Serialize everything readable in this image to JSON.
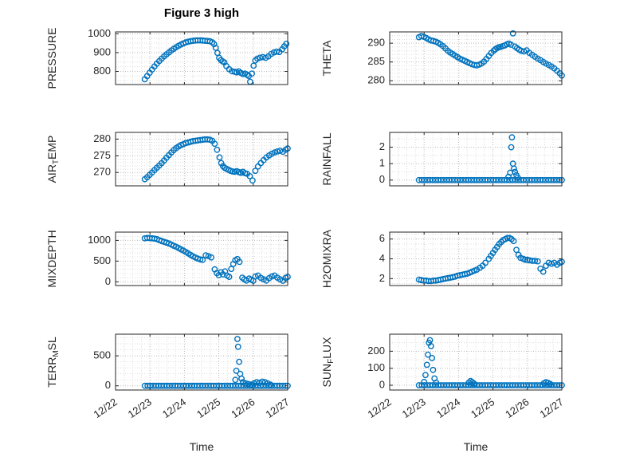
{
  "title": "Figure 3 high",
  "xlabel": "Time",
  "x_tick_labels": [
    "12/22",
    "12/23",
    "12/24",
    "12/25",
    "12/26",
    "12/27"
  ],
  "xticks": [
    0,
    1,
    2,
    3,
    4,
    5
  ],
  "xlim": [
    0,
    5
  ],
  "xminor": 0.25,
  "colors": {
    "marker": "#0072BD",
    "axis": "#262626",
    "grid_major": "#b9b9b9",
    "grid_minor": "#dcdcdc"
  },
  "chart_data": [
    {
      "id": "pressure",
      "type": "scatter",
      "ylabel_text": "PRESSURE",
      "ylabel_parts": [
        {
          "text": "PRESSURE",
          "sub": false
        }
      ],
      "yticks": [
        800,
        900,
        1000
      ],
      "ylim": [
        730,
        1010
      ],
      "yminor": 25,
      "x": [
        0.85,
        0.92,
        0.99,
        1.06,
        1.13,
        1.2,
        1.27,
        1.34,
        1.41,
        1.48,
        1.55,
        1.62,
        1.69,
        1.76,
        1.83,
        1.9,
        1.97,
        2.04,
        2.11,
        2.18,
        2.25,
        2.32,
        2.39,
        2.46,
        2.53,
        2.6,
        2.67,
        2.74,
        2.81,
        2.86,
        2.91,
        2.96,
        3.01,
        3.06,
        3.11,
        3.16,
        3.22,
        3.3,
        3.38,
        3.46,
        3.52,
        3.58,
        3.64,
        3.7,
        3.76,
        3.82,
        3.87,
        3.91,
        3.96,
        4.01,
        4.06,
        4.12,
        4.2,
        4.28,
        4.36,
        4.44,
        4.52,
        4.6,
        4.68,
        4.76,
        4.84,
        4.9,
        4.96
      ],
      "y": [
        758,
        775,
        793,
        810,
        826,
        841,
        855,
        868,
        880,
        891,
        901,
        911,
        920,
        928,
        936,
        943,
        949,
        954,
        958,
        961,
        963,
        964,
        965,
        965,
        964,
        963,
        962,
        960,
        955,
        945,
        925,
        898,
        872,
        860,
        853,
        848,
        828,
        812,
        801,
        798,
        795,
        800,
        792,
        786,
        788,
        782,
        776,
        745,
        788,
        830,
        858,
        868,
        873,
        876,
        872,
        880,
        893,
        901,
        905,
        903,
        918,
        933,
        947
      ]
    },
    {
      "id": "theta",
      "type": "scatter",
      "ylabel_text": "THETA",
      "ylabel_parts": [
        {
          "text": "THETA",
          "sub": false
        }
      ],
      "yticks": [
        280,
        285,
        290
      ],
      "ylim": [
        279,
        293
      ],
      "yminor": 1,
      "x": [
        0.85,
        0.92,
        0.99,
        1.06,
        1.13,
        1.2,
        1.27,
        1.34,
        1.41,
        1.48,
        1.55,
        1.62,
        1.69,
        1.76,
        1.83,
        1.9,
        1.97,
        2.04,
        2.11,
        2.18,
        2.25,
        2.32,
        2.39,
        2.46,
        2.53,
        2.6,
        2.67,
        2.74,
        2.81,
        2.88,
        2.95,
        3.02,
        3.07,
        3.12,
        3.17,
        3.22,
        3.28,
        3.34,
        3.4,
        3.46,
        3.52,
        3.58,
        3.64,
        3.7,
        3.76,
        3.82,
        3.9,
        3.98,
        4.06,
        4.14,
        4.22,
        4.3,
        4.38,
        4.46,
        4.54,
        4.62,
        4.7,
        4.78,
        4.86,
        4.94,
        5.0
      ],
      "y": [
        291.6,
        291.9,
        291.7,
        291.4,
        291.0,
        290.7,
        290.6,
        290.4,
        290.1,
        289.7,
        289.2,
        288.6,
        288.0,
        287.5,
        287.1,
        286.7,
        286.3,
        285.9,
        285.6,
        285.3,
        285.0,
        284.7,
        284.4,
        284.2,
        284.1,
        284.3,
        284.6,
        285.1,
        285.8,
        286.6,
        287.4,
        288.0,
        288.4,
        288.7,
        288.9,
        289.0,
        289.2,
        289.4,
        289.7,
        289.9,
        289.6,
        292.6,
        289.1,
        288.7,
        288.3,
        288.0,
        287.8,
        288.1,
        287.4,
        286.9,
        286.4,
        285.9,
        285.5,
        285.0,
        284.6,
        284.2,
        283.8,
        283.3,
        282.7,
        282.0,
        281.4
      ]
    },
    {
      "id": "air-temp",
      "type": "scatter",
      "ylabel_text": "AIR_TEMP",
      "ylabel_parts": [
        {
          "text": "AIR",
          "sub": false
        },
        {
          "text": "T",
          "sub": true
        },
        {
          "text": "EMP",
          "sub": false
        }
      ],
      "yticks": [
        270,
        275,
        280
      ],
      "ylim": [
        266,
        282
      ],
      "yminor": 1,
      "x": [
        0.85,
        0.92,
        0.99,
        1.06,
        1.13,
        1.2,
        1.27,
        1.34,
        1.41,
        1.48,
        1.55,
        1.62,
        1.69,
        1.76,
        1.83,
        1.9,
        1.97,
        2.04,
        2.11,
        2.18,
        2.25,
        2.32,
        2.39,
        2.46,
        2.53,
        2.6,
        2.67,
        2.74,
        2.81,
        2.88,
        2.95,
        3.02,
        3.07,
        3.12,
        3.17,
        3.22,
        3.28,
        3.34,
        3.4,
        3.46,
        3.52,
        3.58,
        3.64,
        3.7,
        3.76,
        3.82,
        3.9,
        3.98,
        4.06,
        4.14,
        4.22,
        4.3,
        4.38,
        4.46,
        4.54,
        4.62,
        4.7,
        4.78,
        4.86,
        4.94,
        5.0
      ],
      "y": [
        268.0,
        268.6,
        269.3,
        270.0,
        270.7,
        271.4,
        272.1,
        272.8,
        273.6,
        274.4,
        275.2,
        276.0,
        276.7,
        277.3,
        277.8,
        278.2,
        278.5,
        278.8,
        279.0,
        279.2,
        279.4,
        279.5,
        279.6,
        279.7,
        279.8,
        279.9,
        279.9,
        279.8,
        279.5,
        278.6,
        276.8,
        274.5,
        272.8,
        271.9,
        271.4,
        271.1,
        270.8,
        270.5,
        270.3,
        270.2,
        270.4,
        270.1,
        269.9,
        270.2,
        269.8,
        269.6,
        268.9,
        267.6,
        270.5,
        271.8,
        272.8,
        273.7,
        274.5,
        275.1,
        275.6,
        276.0,
        276.3,
        276.5,
        276.2,
        276.8,
        277.2
      ]
    },
    {
      "id": "rainfall",
      "type": "scatter",
      "ylabel_text": "RAINFALL",
      "ylabel_parts": [
        {
          "text": "RAINFALL",
          "sub": false
        }
      ],
      "yticks": [
        0,
        1,
        2
      ],
      "ylim": [
        -0.35,
        2.9
      ],
      "yminor": 0.5,
      "x": [
        0.85,
        0.93,
        1.01,
        1.09,
        1.17,
        1.25,
        1.33,
        1.41,
        1.49,
        1.57,
        1.65,
        1.73,
        1.81,
        1.89,
        1.97,
        2.05,
        2.13,
        2.21,
        2.29,
        2.37,
        2.45,
        2.53,
        2.61,
        2.69,
        2.77,
        2.85,
        2.93,
        3.01,
        3.09,
        3.17,
        3.25,
        3.33,
        3.41,
        3.49,
        3.57,
        3.65,
        3.73,
        3.81,
        3.89,
        3.97,
        4.05,
        4.13,
        4.21,
        4.29,
        4.37,
        4.45,
        4.53,
        4.61,
        4.69,
        4.77,
        4.85,
        4.93,
        5.0,
        3.45,
        3.5,
        3.53,
        3.55,
        3.58,
        3.61,
        3.64,
        3.68,
        3.72
      ],
      "y": [
        0,
        0,
        0,
        0,
        0,
        0,
        0,
        0,
        0,
        0,
        0,
        0,
        0,
        0,
        0,
        0,
        0,
        0,
        0,
        0,
        0,
        0,
        0,
        0,
        0,
        0,
        0,
        0,
        0,
        0,
        0,
        0,
        0,
        0,
        0,
        0,
        0,
        0,
        0,
        0,
        0,
        0,
        0,
        0,
        0,
        0,
        0,
        0,
        0,
        0,
        0,
        0,
        0,
        0.2,
        0.45,
        2.0,
        2.6,
        1.0,
        0.7,
        0.5,
        0.3,
        0.15
      ]
    },
    {
      "id": "mixdepth",
      "type": "scatter",
      "ylabel_text": "MIXDEPTH",
      "ylabel_parts": [
        {
          "text": "MIXDEPTH",
          "sub": false
        }
      ],
      "yticks": [
        0,
        500,
        1000
      ],
      "ylim": [
        -90,
        1200
      ],
      "yminor": 100,
      "x": [
        0.85,
        0.92,
        0.99,
        1.06,
        1.13,
        1.2,
        1.27,
        1.34,
        1.41,
        1.48,
        1.55,
        1.62,
        1.69,
        1.76,
        1.83,
        1.9,
        1.97,
        2.04,
        2.11,
        2.18,
        2.25,
        2.32,
        2.39,
        2.46,
        2.53,
        2.62,
        2.7,
        2.78,
        2.88,
        2.94,
        3.0,
        3.06,
        3.12,
        3.18,
        3.24,
        3.3,
        3.36,
        3.42,
        3.48,
        3.54,
        3.6,
        3.68,
        3.74,
        3.8,
        3.88,
        3.94,
        4.0,
        4.06,
        4.14,
        4.22,
        4.3,
        4.38,
        4.46,
        4.54,
        4.62,
        4.7,
        4.78,
        4.86,
        4.94,
        5.0
      ],
      "y": [
        1050,
        1060,
        1055,
        1050,
        1045,
        1030,
        1005,
        985,
        965,
        945,
        925,
        900,
        870,
        845,
        815,
        785,
        755,
        720,
        685,
        650,
        615,
        585,
        560,
        540,
        530,
        640,
        620,
        590,
        300,
        210,
        160,
        230,
        180,
        250,
        150,
        120,
        310,
        430,
        520,
        550,
        480,
        100,
        60,
        30,
        80,
        50,
        25,
        130,
        150,
        95,
        60,
        30,
        90,
        130,
        150,
        100,
        60,
        25,
        95,
        120
      ]
    },
    {
      "id": "h2omixra",
      "type": "scatter",
      "ylabel_text": "H2OMIXRA",
      "ylabel_parts": [
        {
          "text": "H2OMIXRA",
          "sub": false
        }
      ],
      "yticks": [
        2,
        4,
        6
      ],
      "ylim": [
        1.3,
        6.7
      ],
      "yminor": 0.5,
      "x": [
        0.85,
        0.92,
        0.99,
        1.06,
        1.13,
        1.2,
        1.27,
        1.34,
        1.41,
        1.48,
        1.55,
        1.62,
        1.69,
        1.76,
        1.83,
        1.9,
        1.97,
        2.04,
        2.11,
        2.18,
        2.25,
        2.32,
        2.39,
        2.46,
        2.53,
        2.62,
        2.7,
        2.78,
        2.88,
        2.94,
        3.0,
        3.06,
        3.12,
        3.18,
        3.24,
        3.3,
        3.36,
        3.42,
        3.48,
        3.54,
        3.6,
        3.68,
        3.74,
        3.8,
        3.88,
        3.94,
        4.0,
        4.06,
        4.14,
        4.22,
        4.3,
        4.38,
        4.46,
        4.54,
        4.62,
        4.7,
        4.78,
        4.86,
        4.94,
        5.0
      ],
      "y": [
        1.9,
        1.85,
        1.8,
        1.8,
        1.75,
        1.75,
        1.8,
        1.8,
        1.85,
        1.9,
        1.95,
        2.0,
        2.05,
        2.1,
        2.15,
        2.2,
        2.3,
        2.35,
        2.4,
        2.45,
        2.5,
        2.6,
        2.7,
        2.8,
        2.9,
        3.1,
        3.3,
        3.6,
        4.0,
        4.3,
        4.6,
        4.9,
        5.2,
        5.5,
        5.7,
        5.9,
        6.0,
        6.1,
        6.1,
        6.0,
        5.8,
        4.9,
        4.4,
        4.1,
        4.0,
        3.9,
        3.9,
        3.85,
        3.8,
        3.8,
        3.75,
        3.0,
        2.7,
        3.3,
        3.6,
        3.5,
        3.6,
        3.4,
        3.6,
        3.7
      ]
    },
    {
      "id": "terr-msl",
      "type": "scatter",
      "ylabel_text": "TERR_MSL",
      "ylabel_parts": [
        {
          "text": "TERR",
          "sub": false
        },
        {
          "text": "M",
          "sub": true
        },
        {
          "text": "SL",
          "sub": false
        }
      ],
      "yticks": [
        0,
        500
      ],
      "ylim": [
        -70,
        860
      ],
      "yminor": 100,
      "x": [
        0.85,
        0.93,
        1.01,
        1.09,
        1.17,
        1.25,
        1.33,
        1.41,
        1.49,
        1.57,
        1.65,
        1.73,
        1.81,
        1.89,
        1.97,
        2.05,
        2.13,
        2.21,
        2.29,
        2.37,
        2.45,
        2.53,
        2.61,
        2.69,
        2.77,
        2.85,
        2.93,
        3.01,
        3.09,
        3.17,
        3.25,
        3.33,
        3.41,
        3.49,
        3.57,
        3.65,
        3.73,
        3.81,
        3.89,
        3.97,
        4.05,
        4.13,
        4.21,
        4.29,
        4.37,
        4.45,
        4.53,
        4.61,
        4.69,
        4.77,
        4.85,
        4.93,
        5.0,
        3.48,
        3.51,
        3.54,
        3.56,
        3.59,
        3.62,
        3.66,
        3.7,
        3.78,
        3.86,
        3.94,
        4.02,
        4.1,
        4.18,
        4.26,
        4.34,
        4.42,
        4.5
      ],
      "y": [
        0,
        0,
        0,
        0,
        0,
        0,
        0,
        0,
        0,
        0,
        0,
        0,
        0,
        0,
        0,
        0,
        0,
        0,
        0,
        0,
        0,
        0,
        0,
        0,
        0,
        0,
        0,
        0,
        0,
        0,
        0,
        0,
        0,
        0,
        0,
        0,
        0,
        0,
        0,
        0,
        0,
        0,
        0,
        0,
        0,
        0,
        0,
        0,
        0,
        0,
        0,
        0,
        0,
        100,
        250,
        780,
        650,
        400,
        200,
        120,
        60,
        40,
        30,
        20,
        40,
        60,
        50,
        70,
        60,
        40,
        20
      ]
    },
    {
      "id": "sun-flux",
      "type": "scatter",
      "ylabel_text": "SUN_FLUX",
      "ylabel_parts": [
        {
          "text": "SUN",
          "sub": false
        },
        {
          "text": "F",
          "sub": true
        },
        {
          "text": "LUX",
          "sub": false
        }
      ],
      "yticks": [
        0,
        100,
        200
      ],
      "ylim": [
        -28,
        300
      ],
      "yminor": 50,
      "x": [
        0.85,
        0.93,
        1.01,
        1.09,
        1.17,
        1.25,
        1.33,
        1.41,
        1.49,
        1.57,
        1.65,
        1.73,
        1.81,
        1.89,
        1.97,
        2.05,
        2.13,
        2.21,
        2.29,
        2.37,
        2.45,
        2.53,
        2.61,
        2.69,
        2.77,
        2.85,
        2.93,
        3.01,
        3.09,
        3.17,
        3.25,
        3.33,
        3.41,
        3.49,
        3.57,
        3.65,
        3.73,
        3.81,
        3.89,
        3.97,
        4.05,
        4.13,
        4.21,
        4.29,
        4.37,
        4.45,
        4.53,
        4.61,
        4.69,
        4.77,
        4.85,
        4.93,
        5.0,
        1.0,
        1.04,
        1.08,
        1.11,
        1.14,
        1.17,
        1.2,
        1.23,
        1.26,
        1.3,
        1.35,
        2.3,
        2.35,
        2.4,
        2.45,
        4.48,
        4.54,
        4.6,
        4.66
      ],
      "y": [
        0,
        0,
        0,
        0,
        0,
        0,
        0,
        0,
        0,
        0,
        0,
        0,
        0,
        0,
        0,
        0,
        0,
        0,
        0,
        0,
        0,
        0,
        0,
        0,
        0,
        0,
        0,
        0,
        0,
        0,
        0,
        0,
        0,
        0,
        0,
        0,
        0,
        0,
        0,
        0,
        0,
        0,
        0,
        0,
        0,
        0,
        0,
        0,
        0,
        0,
        0,
        0,
        0,
        20,
        60,
        120,
        180,
        250,
        265,
        230,
        160,
        90,
        40,
        15,
        15,
        25,
        18,
        10,
        12,
        18,
        14,
        8
      ]
    }
  ]
}
